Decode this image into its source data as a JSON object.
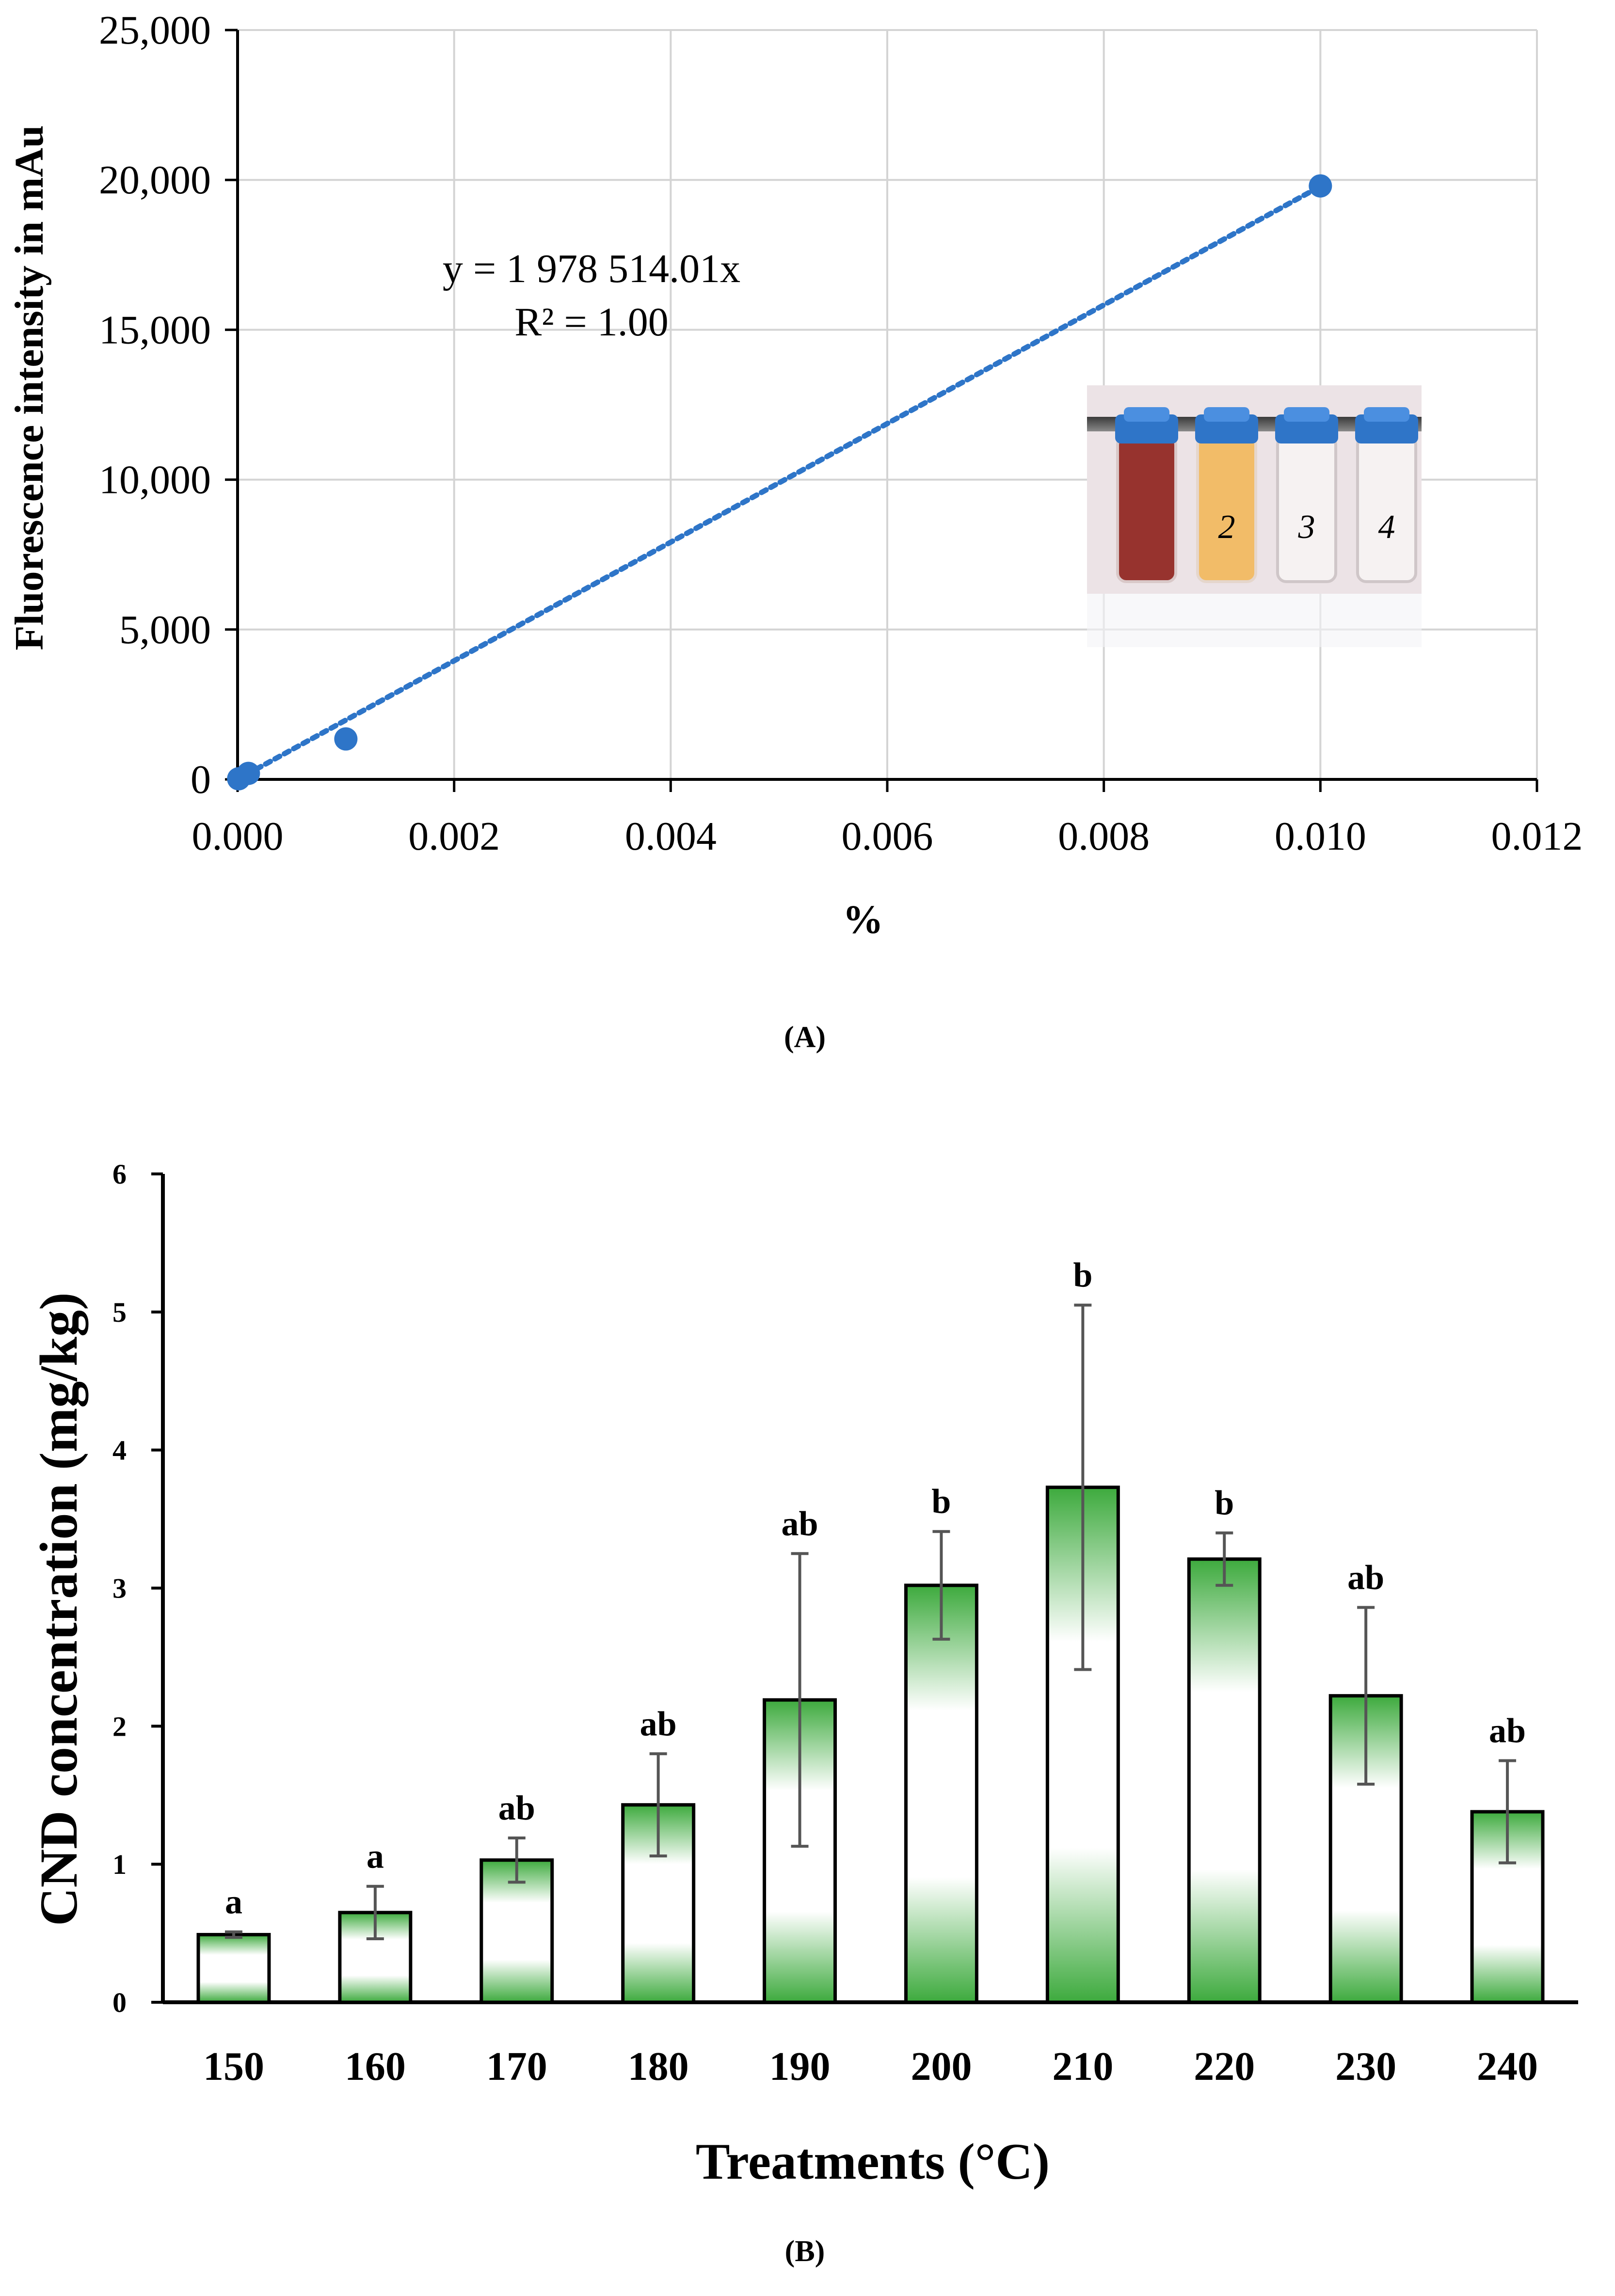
{
  "chart_data": [
    {
      "type": "scatter",
      "panel_label": "(A)",
      "title": "",
      "xlabel": "%",
      "ylabel": "Fluorescence intensity in mAu",
      "xlim": [
        0,
        0.012
      ],
      "ylim": [
        0,
        25000
      ],
      "xticks": [
        0.0,
        0.002,
        0.004,
        0.006,
        0.008,
        0.01,
        0.012
      ],
      "xtick_labels": [
        "0.000",
        "0.002",
        "0.004",
        "0.006",
        "0.008",
        "0.010",
        "0.012"
      ],
      "yticks": [
        0,
        5000,
        10000,
        15000,
        20000,
        25000
      ],
      "ytick_labels": [
        "0",
        "5,000",
        "10,000",
        "15,000",
        "20,000",
        "25,000"
      ],
      "grid": true,
      "color": "#2E75C8",
      "points": [
        {
          "x": 1e-05,
          "y": 20
        },
        {
          "x": 0.0001,
          "y": 200
        },
        {
          "x": 0.001,
          "y": 1350
        },
        {
          "x": 0.01,
          "y": 19800
        }
      ],
      "trendline": {
        "type": "linear",
        "slope": 1978514.01,
        "intercept": 0,
        "style": "dotted"
      },
      "equation": "y = 1 978 514.01x",
      "r_squared": "R² = 1.00",
      "inset_vial_labels": [
        "2",
        "3",
        "4"
      ]
    },
    {
      "type": "bar",
      "panel_label": "(B)",
      "title": "",
      "xlabel": "Treatments (°C)",
      "ylabel": "CND concentration (mg/kg)",
      "ylim": [
        0,
        6
      ],
      "yticks": [
        0,
        1,
        2,
        3,
        4,
        5,
        6
      ],
      "ytick_labels": [
        "0",
        "1",
        "2",
        "3",
        "4",
        "5",
        "6"
      ],
      "grid": false,
      "bar_color": "#3DAA3D",
      "categories": [
        "150",
        "160",
        "170",
        "180",
        "190",
        "200",
        "210",
        "220",
        "230",
        "240"
      ],
      "values": [
        0.49,
        0.65,
        1.03,
        1.43,
        2.19,
        3.02,
        3.73,
        3.21,
        2.22,
        1.38
      ],
      "errors": [
        0.02,
        0.19,
        0.16,
        0.37,
        1.06,
        0.39,
        1.32,
        0.19,
        0.64,
        0.37
      ],
      "significance": [
        "a",
        "a",
        "ab",
        "ab",
        "ab",
        "b",
        "b",
        "b",
        "ab",
        "ab"
      ]
    }
  ]
}
